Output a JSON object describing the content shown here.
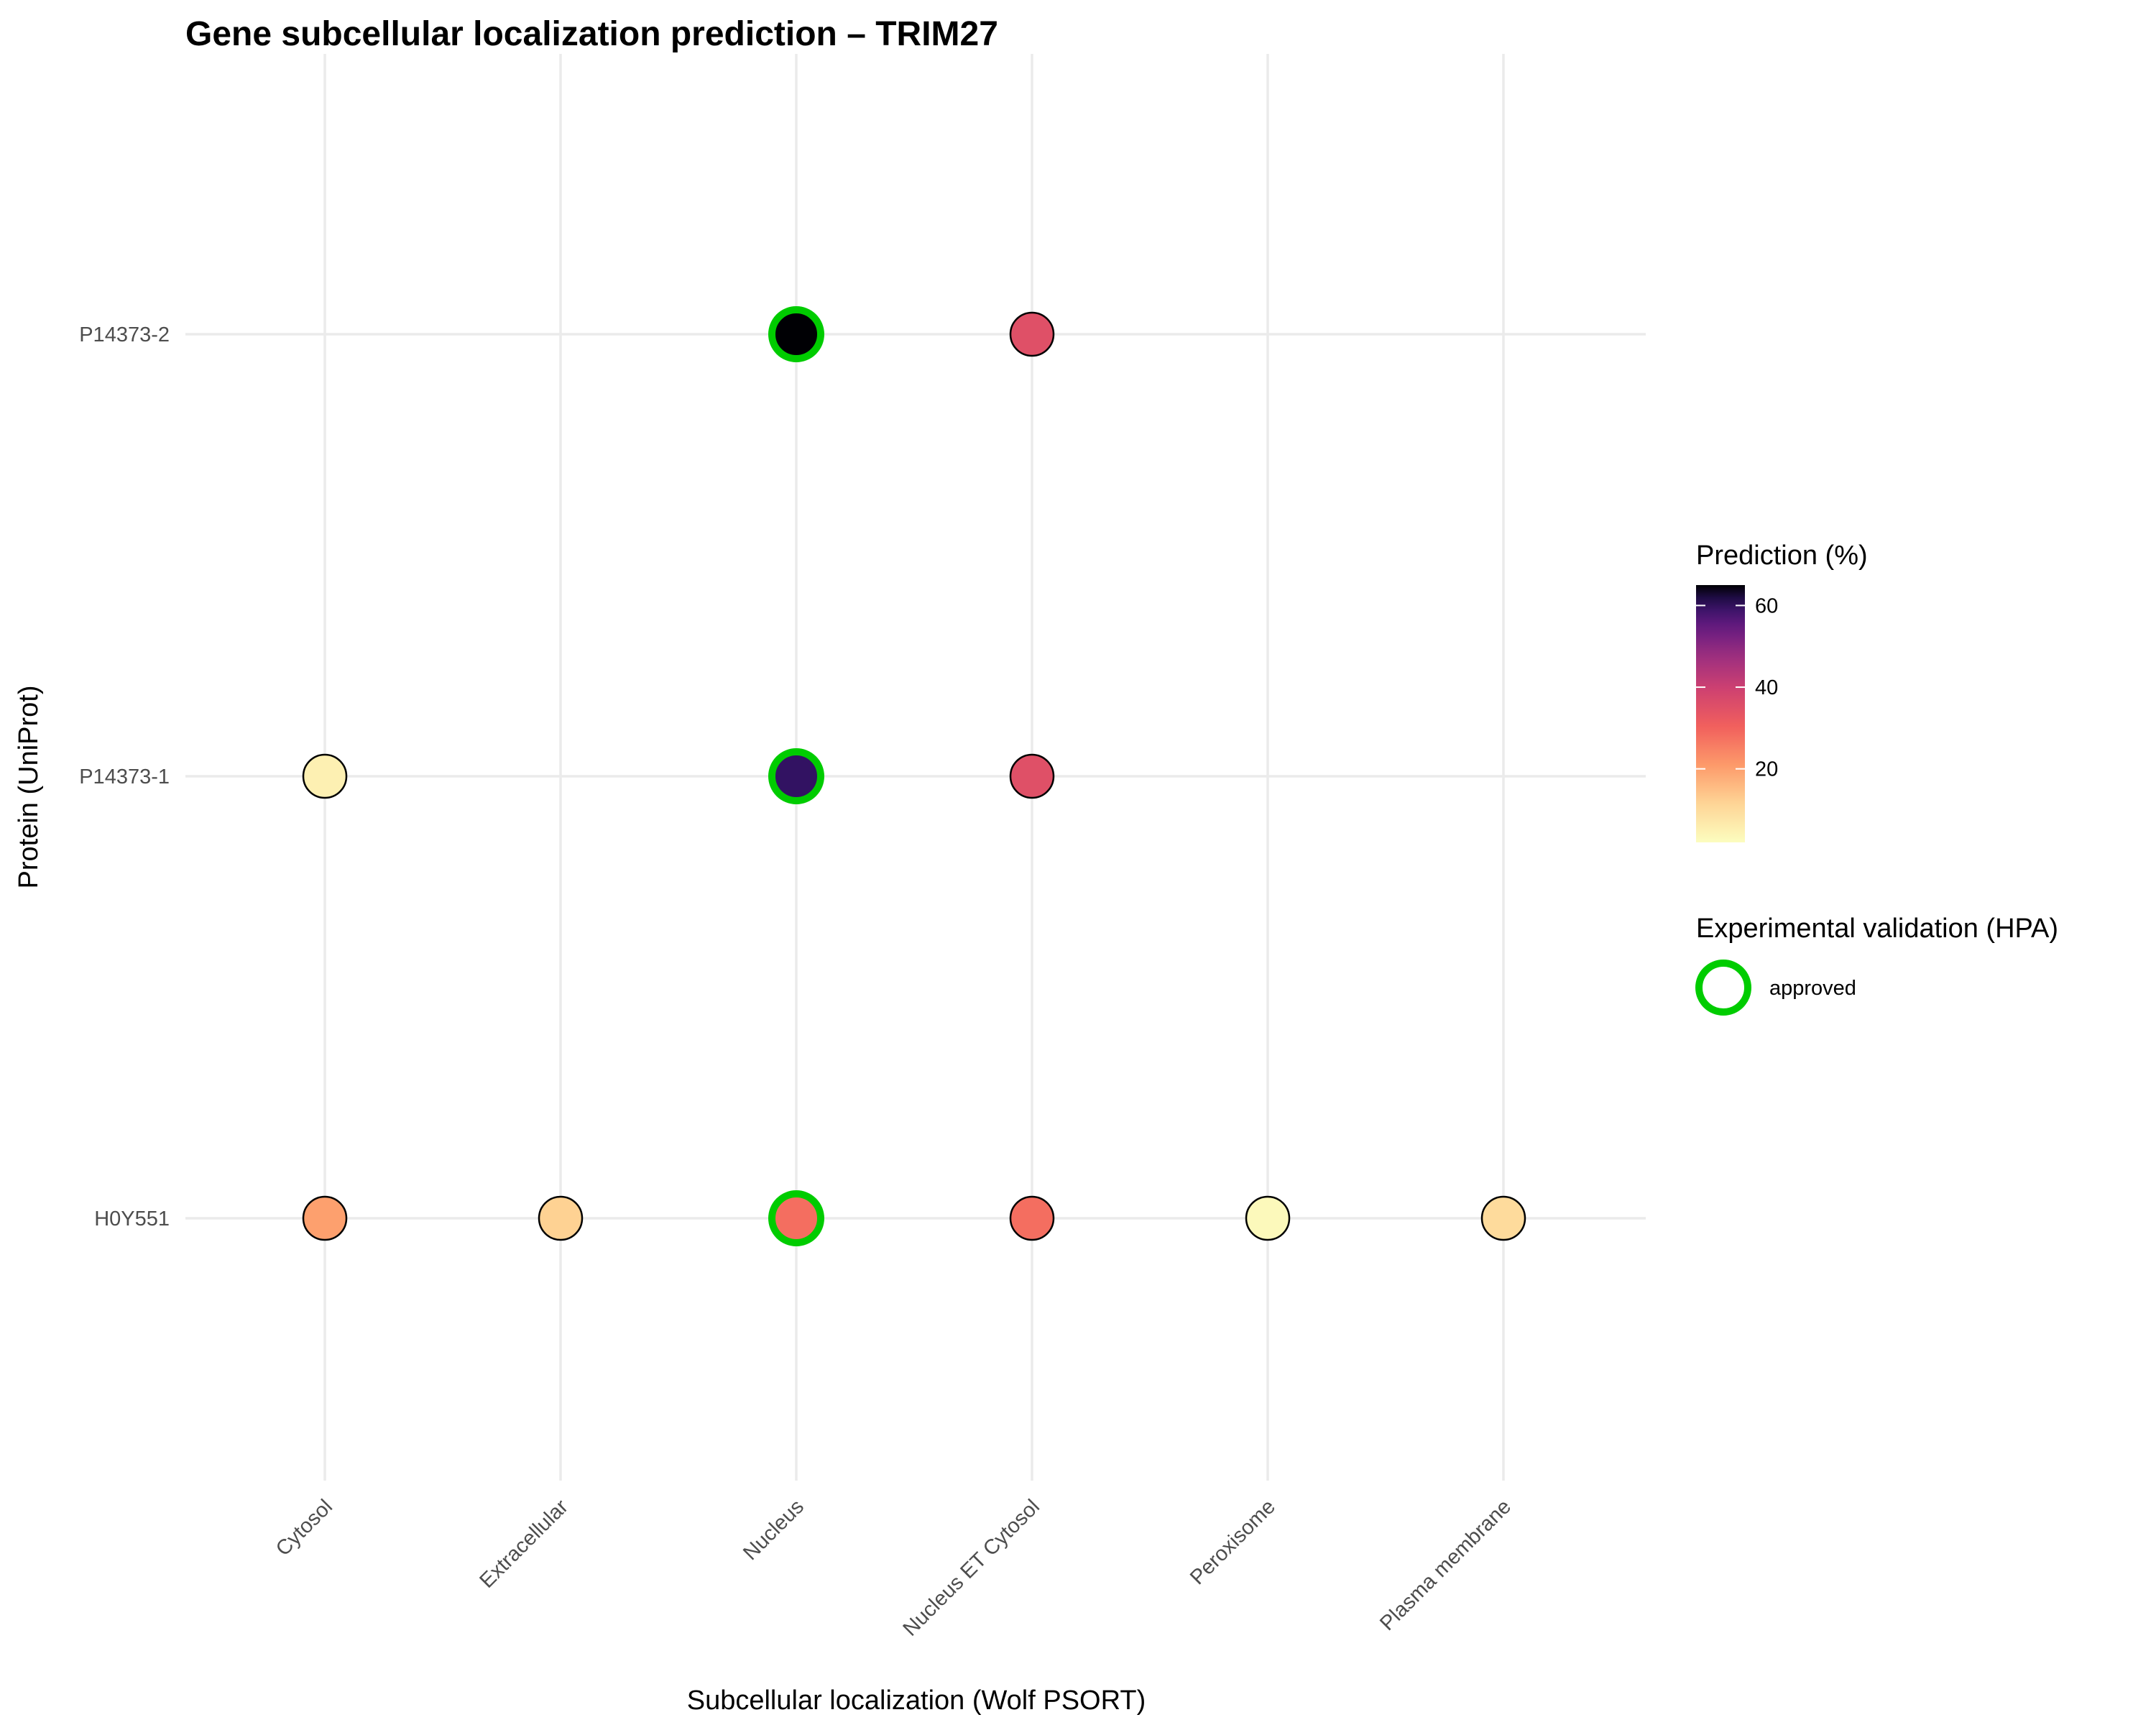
{
  "chart_data": {
    "type": "scatter",
    "title": "Gene subcellular localization prediction – TRIM27",
    "xlabel": "Subcellular localization (Wolf PSORT)",
    "ylabel": "Protein (UniProt)",
    "x_categories": [
      "Cytosol",
      "Extracellular",
      "Nucleus",
      "Nucleus ET Cytosol",
      "Peroxisome",
      "Plasma membrane"
    ],
    "y_categories": [
      "H0Y551",
      "P14373-1",
      "P14373-2"
    ],
    "grid": true,
    "points": [
      {
        "x": "Nucleus",
        "y": "P14373-2",
        "value": 65,
        "approved": true
      },
      {
        "x": "Nucleus ET Cytosol",
        "y": "P14373-2",
        "value": 35,
        "approved": false
      },
      {
        "x": "Cytosol",
        "y": "P14373-1",
        "value": 5,
        "approved": false
      },
      {
        "x": "Nucleus",
        "y": "P14373-1",
        "value": 60,
        "approved": true
      },
      {
        "x": "Nucleus ET Cytosol",
        "y": "P14373-1",
        "value": 35,
        "approved": false
      },
      {
        "x": "Cytosol",
        "y": "H0Y551",
        "value": 20,
        "approved": false
      },
      {
        "x": "Extracellular",
        "y": "H0Y551",
        "value": 12,
        "approved": false
      },
      {
        "x": "Nucleus",
        "y": "H0Y551",
        "value": 28,
        "approved": true
      },
      {
        "x": "Nucleus ET Cytosol",
        "y": "H0Y551",
        "value": 28,
        "approved": false
      },
      {
        "x": "Peroxisome",
        "y": "H0Y551",
        "value": 3,
        "approved": false
      },
      {
        "x": "Plasma membrane",
        "y": "H0Y551",
        "value": 10,
        "approved": false
      }
    ],
    "color_legend": {
      "title": "Prediction (%)",
      "min": 2,
      "max": 65,
      "ticks": [
        20,
        40,
        60
      ],
      "tick_labels": [
        "20",
        "40",
        "60"
      ],
      "palette": "magma"
    },
    "shape_legend": {
      "title": "Experimental validation (HPA)",
      "label": "approved",
      "color": "#00cc00"
    },
    "legend_position": "right"
  }
}
